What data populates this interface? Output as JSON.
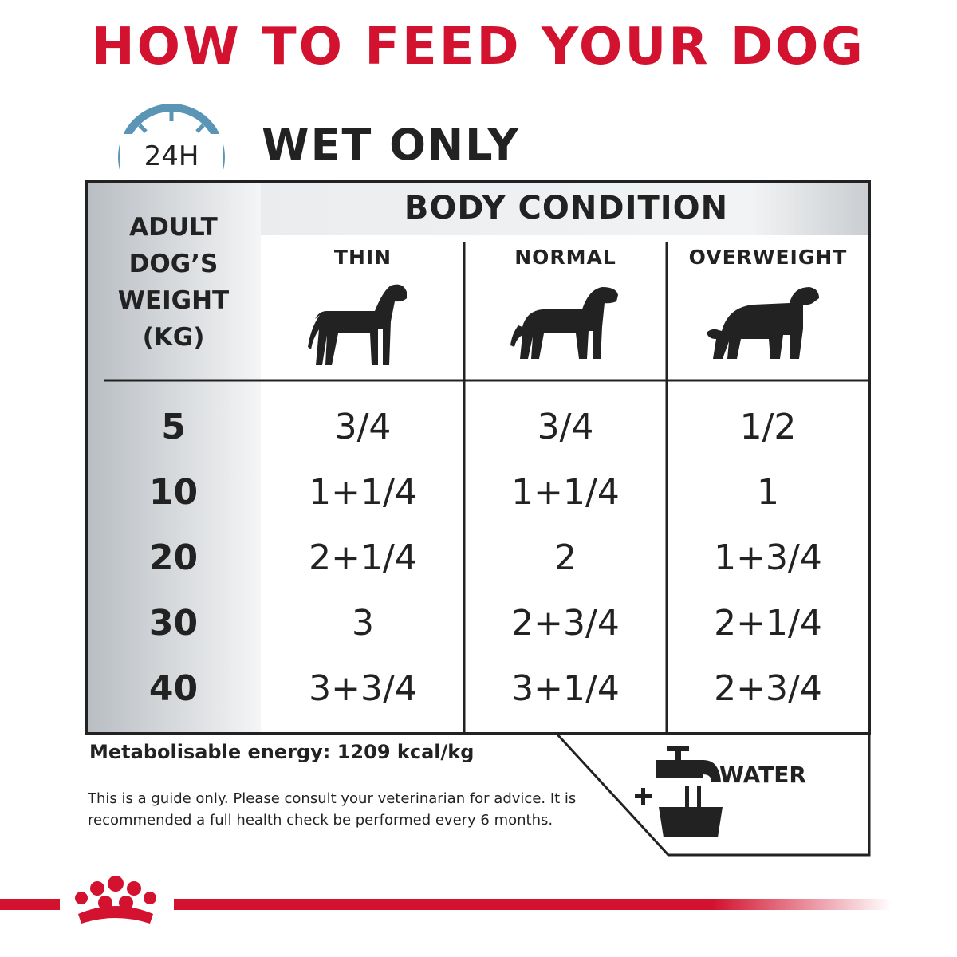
{
  "header": {
    "title": "HOW TO FEED YOUR DOG",
    "badge": "24H",
    "subtitle": "WET ONLY"
  },
  "table": {
    "row_header": [
      "ADULT",
      "DOG’S",
      "WEIGHT",
      "(KG)"
    ],
    "group_header": "BODY CONDITION",
    "columns": [
      "THIN",
      "NORMAL",
      "OVERWEIGHT"
    ],
    "rows": [
      [
        "5",
        "3/4",
        "3/4",
        "1/2"
      ],
      [
        "10",
        "1+1/4",
        "1+1/4",
        "1"
      ],
      [
        "20",
        "2+1/4",
        "2",
        "1+3/4"
      ],
      [
        "30",
        "3",
        "2+3/4",
        "2+1/4"
      ],
      [
        "40",
        "3+3/4",
        "3+1/4",
        "2+3/4"
      ]
    ]
  },
  "footer": {
    "energy": "Metabolisable energy: 1209 kcal/kg",
    "note": "This is a guide only. Please consult your veterinarian for advice. It is recommended a full health check be performed every 6 months.",
    "water": "WATER"
  }
}
